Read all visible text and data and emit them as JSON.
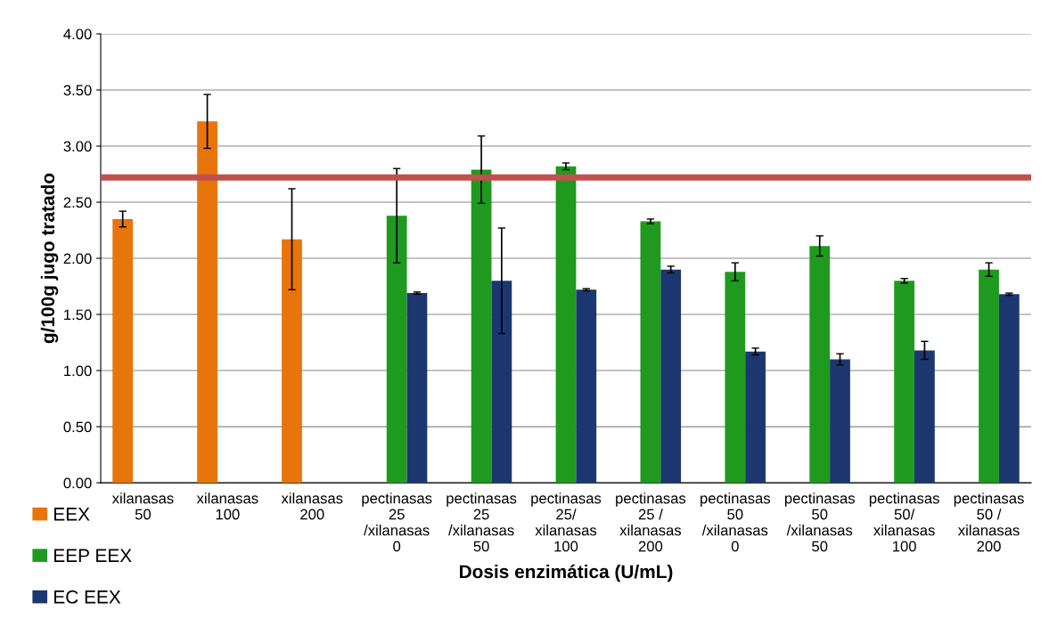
{
  "chart_data": {
    "type": "bar",
    "xlabel": "Dosis enzimática (U/mL)",
    "ylabel": "g/100g jugo tratado",
    "categories": [
      "xilanasas\n50",
      "xilanasas\n100",
      "xilanasas\n200",
      "pectinasas\n25\n/xilanasas\n0",
      "pectinasas\n25\n/xilanasas\n50",
      "pectinasas\n25/\nxilanasas\n100",
      "pectinasas\n25 /\nxilanasas\n200",
      "pectinasas\n50\n/xilanasas\n0",
      "pectinasas\n50\n/xilanasas\n50",
      "pectinasas\n50/\nxilanasas\n100",
      "pectinasas\n50 /\nxilanasas\n200"
    ],
    "series": [
      {
        "name": "EEX",
        "color": "#e8740c",
        "values": [
          2.35,
          3.22,
          2.17,
          null,
          null,
          null,
          null,
          null,
          null,
          null,
          null
        ],
        "errors": [
          0.07,
          0.24,
          0.45,
          null,
          null,
          null,
          null,
          null,
          null,
          null,
          null
        ]
      },
      {
        "name": "EEP EEX",
        "color": "#1f9a1f",
        "values": [
          null,
          null,
          null,
          2.38,
          2.79,
          2.82,
          2.33,
          1.88,
          2.11,
          1.8,
          1.9
        ],
        "errors": [
          null,
          null,
          null,
          0.42,
          0.3,
          0.03,
          0.02,
          0.08,
          0.09,
          0.02,
          0.06
        ]
      },
      {
        "name": "EC EEX",
        "color": "#1c3770",
        "values": [
          null,
          null,
          null,
          1.69,
          1.8,
          1.72,
          1.9,
          1.17,
          1.1,
          1.18,
          1.68
        ],
        "errors": [
          null,
          null,
          null,
          0.01,
          0.47,
          0.01,
          0.03,
          0.03,
          0.05,
          0.08,
          0.01
        ]
      }
    ],
    "ylim": [
      0,
      4
    ],
    "yticks": [
      {
        "value": 0,
        "label": "0.00"
      },
      {
        "value": 0.5,
        "label": "0.50"
      },
      {
        "value": 1,
        "label": "1.00"
      },
      {
        "value": 1.5,
        "label": "1.50"
      },
      {
        "value": 2,
        "label": "2.00"
      },
      {
        "value": 2.5,
        "label": "2.50"
      },
      {
        "value": 3,
        "label": "3.00"
      },
      {
        "value": 3.5,
        "label": "3.50"
      },
      {
        "value": 4,
        "label": "4.00"
      }
    ],
    "ref_lines": [
      {
        "axis": "y",
        "value": 2.72,
        "color": "#c0504d"
      }
    ],
    "grid": "y",
    "legend": "bottom left"
  }
}
